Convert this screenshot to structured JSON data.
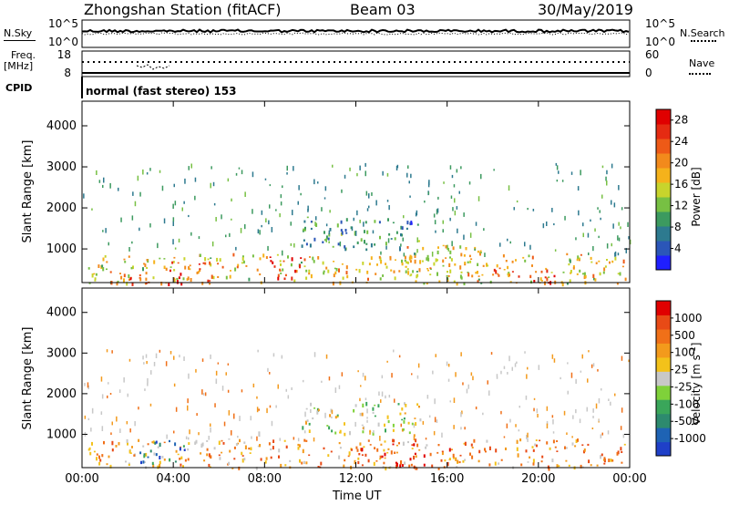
{
  "header": {
    "station": "Zhongshan Station (fitACF)",
    "beam": "Beam 03",
    "date": "30/May/2019"
  },
  "panels": {
    "nsky_label": "N.Sky",
    "nsearch_label": "N.Search",
    "freq_label_line1": "Freq.",
    "freq_label_line2": "[MHz]",
    "nave_label": "Nave",
    "cpid_label": "CPID",
    "cpid_text": "normal (fast stereo) 153",
    "nsky_ticks": [
      "10^5",
      "10^0"
    ],
    "nsearch_ticks": [
      "10^5",
      "10^0"
    ],
    "freq_ticks": [
      "18",
      "8"
    ],
    "nave_ticks": [
      "60",
      "0"
    ]
  },
  "chart_data": [
    {
      "type": "heatmap",
      "ylabel": "Slant Range [km]",
      "xlabel": "Time UT",
      "x_ticks": [
        "00:00",
        "04:00",
        "08:00",
        "12:00",
        "16:00",
        "20:00",
        "00:00"
      ],
      "xlim": [
        0,
        24
      ],
      "y_ticks": [
        "1000",
        "2000",
        "3000",
        "4000"
      ],
      "ylim": [
        180,
        4600
      ],
      "colorbar": {
        "label": "Power [dB]",
        "ticks": [
          "4",
          "8",
          "12",
          "16",
          "20",
          "24",
          "28"
        ],
        "range": [
          0,
          30
        ],
        "colors": [
          "#1f1fff",
          "#2b56b8",
          "#2d7a8f",
          "#3c9a5f",
          "#77c043",
          "#c8d42c",
          "#f5b21b",
          "#f28a1c",
          "#ee5a17",
          "#e52b12",
          "#e00000"
        ]
      },
      "echo_regions": [
        {
          "t0": 0.2,
          "t1": 23.8,
          "r0": 180,
          "r1": 900,
          "level": 0.55
        },
        {
          "t0": 1.0,
          "t1": 3.0,
          "r0": 180,
          "r1": 500,
          "level": 0.9
        },
        {
          "t0": 3.5,
          "t1": 6.0,
          "r0": 180,
          "r1": 700,
          "level": 0.85
        },
        {
          "t0": 8.0,
          "t1": 9.6,
          "r0": 300,
          "r1": 900,
          "level": 0.95
        },
        {
          "t0": 9.6,
          "t1": 14.8,
          "r0": 1000,
          "r1": 1800,
          "level": 0.25
        },
        {
          "t0": 14.0,
          "t1": 17.5,
          "r0": 300,
          "r1": 1100,
          "level": 0.6
        },
        {
          "t0": 18.0,
          "t1": 21.0,
          "r0": 180,
          "r1": 600,
          "level": 0.75
        }
      ],
      "sparse_echo_max_range": 3100
    },
    {
      "type": "heatmap",
      "ylabel": "Slant Range [km]",
      "xlabel": "Time UT",
      "x_ticks": [
        "00:00",
        "04:00",
        "08:00",
        "12:00",
        "16:00",
        "20:00",
        "00:00"
      ],
      "xlim": [
        0,
        24
      ],
      "y_ticks": [
        "1000",
        "2000",
        "3000",
        "4000"
      ],
      "ylim": [
        180,
        4600
      ],
      "colorbar": {
        "label": "Velocity [m s^-1]",
        "ticks": [
          "1000",
          "500",
          "100",
          "25",
          "-25",
          "-100",
          "-500",
          "-1000"
        ],
        "colors": [
          "#1f40c8",
          "#1e63b4",
          "#2d8a6e",
          "#3aa65a",
          "#7fd13a",
          "#c8c8c8",
          "#f3c21a",
          "#f39a1c",
          "#f07018",
          "#e84a16",
          "#e00000"
        ]
      },
      "echo_regions": [
        {
          "t0": 0.2,
          "t1": 23.8,
          "r0": 180,
          "r1": 900,
          "level": 0.7
        },
        {
          "t0": 2.5,
          "t1": 4.5,
          "r0": 300,
          "r1": 900,
          "level": 0.1
        },
        {
          "t0": 9.6,
          "t1": 14.8,
          "r0": 1000,
          "r1": 1800,
          "level": 0.5
        },
        {
          "t0": 12.0,
          "t1": 16.5,
          "r0": 200,
          "r1": 800,
          "level": 0.85
        }
      ],
      "sparse_echo_max_range": 3100
    }
  ]
}
